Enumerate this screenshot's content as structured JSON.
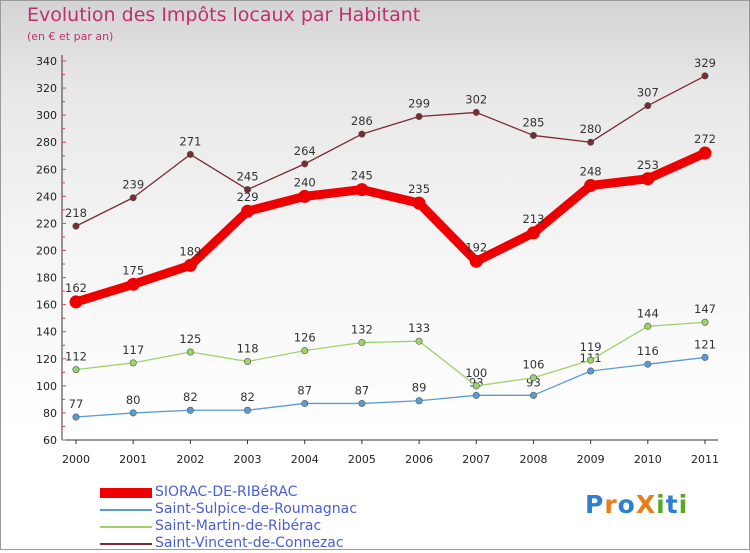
{
  "title": "Evolution des Impôts locaux par Habitant",
  "subtitle": "(en € et par an)",
  "logo": {
    "text": "ProXiti",
    "letters": [
      "P",
      "r",
      "o",
      "X",
      "i",
      "t",
      "i"
    ],
    "colors": [
      "#2e7fd0",
      "#e87d1a",
      "#2e7fd0",
      "#e87d1a",
      "#5aa82a",
      "#2e7fd0",
      "#5aa82a"
    ]
  },
  "chart_data": {
    "type": "line",
    "title": "Evolution des Impôts locaux par Habitant",
    "subtitle": "(en € et par an)",
    "xlabel": "",
    "ylabel": "",
    "x": [
      "2000",
      "2001",
      "2002",
      "2003",
      "2004",
      "2005",
      "2006",
      "2007",
      "2008",
      "2009",
      "2010",
      "2011"
    ],
    "ylim": [
      60,
      340
    ],
    "yticks": [
      "60",
      "80",
      "100",
      "120",
      "140",
      "160",
      "180",
      "200",
      "220",
      "240",
      "260",
      "280",
      "300",
      "320",
      "340"
    ],
    "grid": false,
    "legend": "bottom-left",
    "series": [
      {
        "name": "SIORAC-DE-RIBéRAC",
        "color": "#ee0000",
        "weight": "thick",
        "values": [
          162,
          175,
          189,
          229,
          240,
          245,
          235,
          192,
          213,
          248,
          253,
          272
        ],
        "labels": [
          "162",
          "175",
          "189",
          "229",
          "240",
          "245",
          "235",
          "192",
          "213",
          "248",
          "253",
          "272"
        ]
      },
      {
        "name": "Saint-Sulpice-de-Roumagnac",
        "color": "#5b9bd5",
        "weight": "thin",
        "values": [
          77,
          80,
          82,
          82,
          87,
          87,
          89,
          93,
          93,
          111,
          116,
          121
        ],
        "labels": [
          "77",
          "80",
          "82",
          "82",
          "87",
          "87",
          "89",
          "93",
          "93",
          "111",
          "116",
          "121"
        ]
      },
      {
        "name": "Saint-Martin-de-Ribérac",
        "color": "#9ed36a",
        "weight": "thin",
        "values": [
          112,
          117,
          125,
          118,
          126,
          132,
          133,
          100,
          106,
          119,
          144,
          147
        ],
        "labels": [
          "112",
          "117",
          "125",
          "118",
          "126",
          "132",
          "133",
          "100",
          "106",
          "119",
          "144",
          "147"
        ]
      },
      {
        "name": "Saint-Vincent-de-Connezac",
        "color": "#7a2a32",
        "weight": "thin",
        "values": [
          218,
          239,
          271,
          245,
          264,
          286,
          299,
          302,
          285,
          280,
          307,
          329
        ],
        "labels": [
          "218",
          "239",
          "271",
          "245",
          "264",
          "286",
          "299",
          "302",
          "285",
          "280",
          "307",
          "329"
        ]
      }
    ]
  }
}
